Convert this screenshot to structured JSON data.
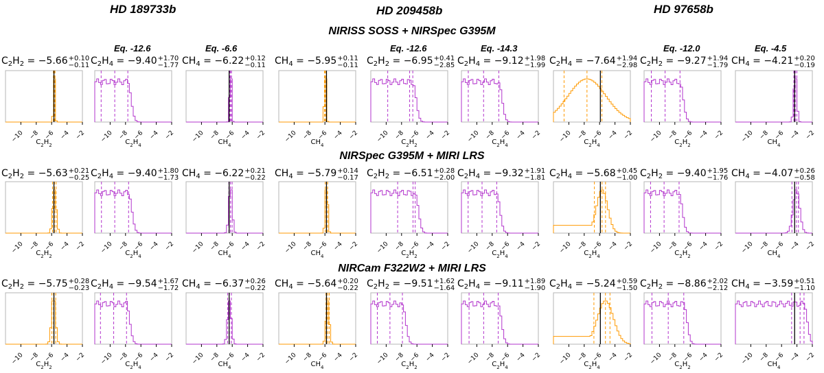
{
  "planets": [
    "HD 189733b",
    "HD 209458b",
    "HD 97658b"
  ],
  "modes": [
    "NIRISS SOSS + NIRSpec G395M",
    "NIRSpec G395M + MIRI LRS",
    "NIRCam F322W2 + MIRI LRS"
  ],
  "x_tick_labels": [
    "−10",
    "−8",
    "−6",
    "−4",
    "−2"
  ],
  "colors": {
    "constrained": "#ff9900",
    "unconstrained": "#b233cc",
    "true_value": "#000000"
  },
  "chart_data": {
    "type": "histogram",
    "columns": [
      {
        "planet": "HD 189733b",
        "species": "C2H2",
        "xlabel_main": "C",
        "xlabel_sub1": "2",
        "xlabel_main2": "H",
        "xlabel_sub2": "2",
        "eq_label": "",
        "true": -5.7
      },
      {
        "planet": "HD 189733b",
        "species": "C2H4",
        "xlabel_main": "C",
        "xlabel_sub1": "2",
        "xlabel_main2": "H",
        "xlabel_sub2": "4",
        "eq_label": "Eq. -12.6",
        "true": null
      },
      {
        "planet": "HD 189733b",
        "species": "CH4",
        "xlabel_main": "CH",
        "xlabel_sub1": "4",
        "xlabel_main2": "",
        "xlabel_sub2": "",
        "eq_label": "Eq. -6.6",
        "true": -6.4
      },
      {
        "planet": "HD 209458b",
        "species": "CH4",
        "xlabel_main": "CH",
        "xlabel_sub1": "4",
        "xlabel_main2": "",
        "xlabel_sub2": "",
        "eq_label": "",
        "true": -5.8
      },
      {
        "planet": "HD 209458b",
        "species": "C2H2",
        "xlabel_main": "C",
        "xlabel_sub1": "2",
        "xlabel_main2": "H",
        "xlabel_sub2": "2",
        "eq_label": "Eq. -12.6",
        "true": null
      },
      {
        "planet": "HD 209458b",
        "species": "C2H4",
        "xlabel_main": "C",
        "xlabel_sub1": "2",
        "xlabel_main2": "H",
        "xlabel_sub2": "4",
        "eq_label": "Eq. -14.3",
        "true": null
      },
      {
        "planet": "HD 97658b",
        "species": "C2H4",
        "xlabel_main": "C",
        "xlabel_sub1": "2",
        "xlabel_main2": "H",
        "xlabel_sub2": "4",
        "eq_label": "",
        "true": -5.9
      },
      {
        "planet": "HD 97658b",
        "species": "C2H2",
        "xlabel_main": "C",
        "xlabel_sub1": "2",
        "xlabel_main2": "H",
        "xlabel_sub2": "2",
        "eq_label": "Eq. -12.0",
        "true": null
      },
      {
        "planet": "HD 97658b",
        "species": "CH4",
        "xlabel_main": "CH",
        "xlabel_sub1": "4",
        "xlabel_main2": "",
        "xlabel_sub2": "",
        "eq_label": "Eq. -4.5",
        "true": -4.3
      }
    ],
    "rows": [
      {
        "mode": "NIRISS SOSS + NIRSpec G395M",
        "panels": [
          {
            "median": "−5.66",
            "plus": "+0.10",
            "minus": "−0.11",
            "constrained": true,
            "q": [
              -5.77,
              -5.66,
              -5.56
            ]
          },
          {
            "median": "−9.40",
            "plus": "+1.70",
            "minus": "−1.77",
            "constrained": false,
            "q": [
              -11.17,
              -9.4,
              -7.7
            ]
          },
          {
            "median": "−6.22",
            "plus": "+0.12",
            "minus": "−0.11",
            "constrained": false,
            "q": [
              -6.33,
              -6.22,
              -6.1
            ]
          },
          {
            "median": "−5.95",
            "plus": "+0.11",
            "minus": "−0.11",
            "constrained": true,
            "q": [
              -6.06,
              -5.95,
              -5.84
            ]
          },
          {
            "median": "−6.95",
            "plus": "+0.41",
            "minus": "−2.85",
            "constrained": false,
            "q": [
              -9.8,
              -6.95,
              -6.54
            ]
          },
          {
            "median": "−9.12",
            "plus": "+1.98",
            "minus": "−1.99",
            "constrained": false,
            "q": [
              -11.11,
              -9.12,
              -7.14
            ]
          },
          {
            "median": "−7.64",
            "plus": "+1.94",
            "minus": "−2.98",
            "constrained": true,
            "q": [
              -10.62,
              -7.64,
              -5.7
            ]
          },
          {
            "median": "−9.27",
            "plus": "+1.94",
            "minus": "−1.79",
            "constrained": false,
            "q": [
              -11.06,
              -9.27,
              -7.33
            ]
          },
          {
            "median": "−4.21",
            "plus": "+0.20",
            "minus": "−0.19",
            "constrained": false,
            "q": [
              -4.4,
              -4.21,
              -4.01
            ]
          }
        ]
      },
      {
        "mode": "NIRSpec G395M + MIRI LRS",
        "panels": [
          {
            "median": "−5.63",
            "plus": "+0.21",
            "minus": "−0.25",
            "constrained": true,
            "q": [
              -5.88,
              -5.63,
              -5.42
            ]
          },
          {
            "median": "−9.40",
            "plus": "+1.80",
            "minus": "−1.73",
            "constrained": false,
            "q": [
              -11.13,
              -9.4,
              -7.6
            ]
          },
          {
            "median": "−6.22",
            "plus": "+0.21",
            "minus": "−0.22",
            "constrained": false,
            "q": [
              -6.44,
              -6.22,
              -6.01
            ]
          },
          {
            "median": "−5.79",
            "plus": "+0.14",
            "minus": "−0.17",
            "constrained": true,
            "q": [
              -5.96,
              -5.79,
              -5.65
            ]
          },
          {
            "median": "−6.51",
            "plus": "+0.28",
            "minus": "−2.00",
            "constrained": false,
            "q": [
              -8.51,
              -6.51,
              -6.23
            ]
          },
          {
            "median": "−9.32",
            "plus": "+1.91",
            "minus": "−1.81",
            "constrained": false,
            "q": [
              -11.13,
              -9.32,
              -7.41
            ]
          },
          {
            "median": "−5.68",
            "plus": "+0.45",
            "minus": "−1.00",
            "constrained": true,
            "q": [
              -6.68,
              -5.68,
              -5.23
            ]
          },
          {
            "median": "−9.40",
            "plus": "+1.95",
            "minus": "−1.76",
            "constrained": false,
            "q": [
              -11.16,
              -9.4,
              -7.45
            ]
          },
          {
            "median": "−4.07",
            "plus": "+0.26",
            "minus": "−0.58",
            "constrained": false,
            "q": [
              -4.65,
              -4.07,
              -3.81
            ]
          }
        ]
      },
      {
        "mode": "NIRCam F322W2 + MIRI LRS",
        "panels": [
          {
            "median": "−5.75",
            "plus": "+0.28",
            "minus": "−0.23",
            "constrained": true,
            "q": [
              -5.98,
              -5.75,
              -5.47
            ]
          },
          {
            "median": "−9.54",
            "plus": "+1.67",
            "minus": "−1.72",
            "constrained": false,
            "q": [
              -11.26,
              -9.54,
              -7.87
            ]
          },
          {
            "median": "−6.37",
            "plus": "+0.26",
            "minus": "−0.22",
            "constrained": false,
            "q": [
              -6.59,
              -6.37,
              -6.11
            ]
          },
          {
            "median": "−5.64",
            "plus": "+0.20",
            "minus": "−0.22",
            "constrained": true,
            "q": [
              -5.86,
              -5.64,
              -5.44
            ]
          },
          {
            "median": "−9.51",
            "plus": "+1.62",
            "minus": "−1.64",
            "constrained": false,
            "q": [
              -11.15,
              -9.51,
              -7.89
            ]
          },
          {
            "median": "−9.11",
            "plus": "+1.89",
            "minus": "−1.90",
            "constrained": false,
            "q": [
              -11.01,
              -9.11,
              -7.22
            ]
          },
          {
            "median": "−5.24",
            "plus": "+0.59",
            "minus": "−1.50",
            "constrained": true,
            "q": [
              -6.74,
              -5.24,
              -4.65
            ]
          },
          {
            "median": "−8.86",
            "plus": "+2.02",
            "minus": "−2.12",
            "constrained": false,
            "q": [
              -10.98,
              -8.86,
              -6.84
            ]
          },
          {
            "median": "−3.59",
            "plus": "+0.51",
            "minus": "−1.10",
            "constrained": false,
            "q": [
              -4.69,
              -3.59,
              -3.08
            ]
          }
        ]
      }
    ],
    "x_range": [
      -12,
      -2
    ],
    "x_ticks": [
      -10,
      -8,
      -6,
      -4,
      -2
    ]
  }
}
